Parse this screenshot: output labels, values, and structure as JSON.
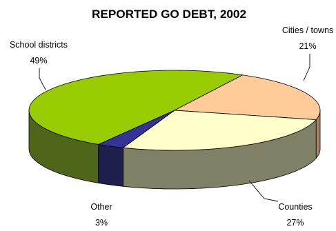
{
  "chart_data": {
    "type": "pie",
    "title": "REPORTED GO DEBT, 2002",
    "style": "3d",
    "slices": [
      {
        "name": "School districts",
        "label": "49%",
        "value": 49,
        "top_color": "#99cc00",
        "side_color": "#4d6619"
      },
      {
        "name": "Cities / towns",
        "label": "21%",
        "value": 21,
        "top_color": "#ffcc99",
        "side_color": "#a8826a"
      },
      {
        "name": "Counties",
        "label": "27%",
        "value": 27,
        "top_color": "#ffffcc",
        "side_color": "#808066"
      },
      {
        "name": "Other",
        "label": "3%",
        "value": 3,
        "top_color": "#333399",
        "side_color": "#1f1f4d"
      }
    ]
  }
}
